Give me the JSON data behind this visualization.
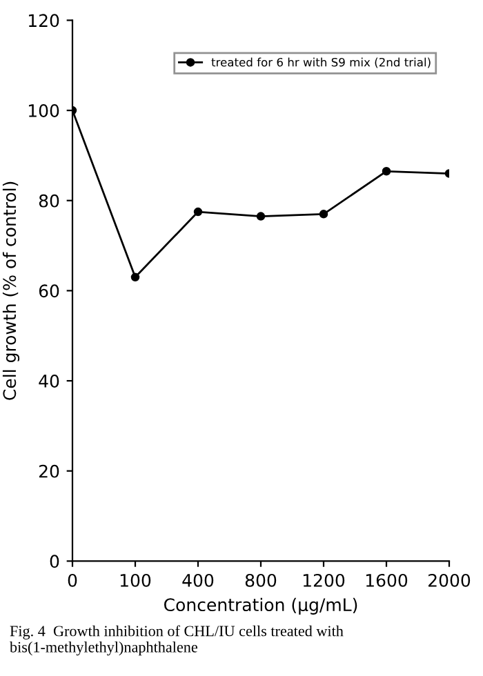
{
  "chart_data": {
    "type": "line",
    "xlabel": "Concentration (μg/mL)",
    "ylabel": "Cell growth (% of control)",
    "categories": [
      "0",
      "100",
      "400",
      "800",
      "1200",
      "1600",
      "2000"
    ],
    "series": [
      {
        "name": "treated for 6 hr with S9 mix (2nd trial)",
        "color": "#000000",
        "values": [
          100,
          63,
          77.5,
          76.5,
          77,
          86.5,
          86
        ]
      }
    ],
    "ylim": [
      0,
      120
    ],
    "yticks": [
      0,
      20,
      40,
      60,
      80,
      100,
      120
    ],
    "marker": "circle",
    "line_style": "solid",
    "legend": "top right",
    "grid": false,
    "annotations": [
      "Fig. 4  Growth inhibition of CHL/IU cells treated with bis(1-methylethyl)naphthalene"
    ]
  }
}
